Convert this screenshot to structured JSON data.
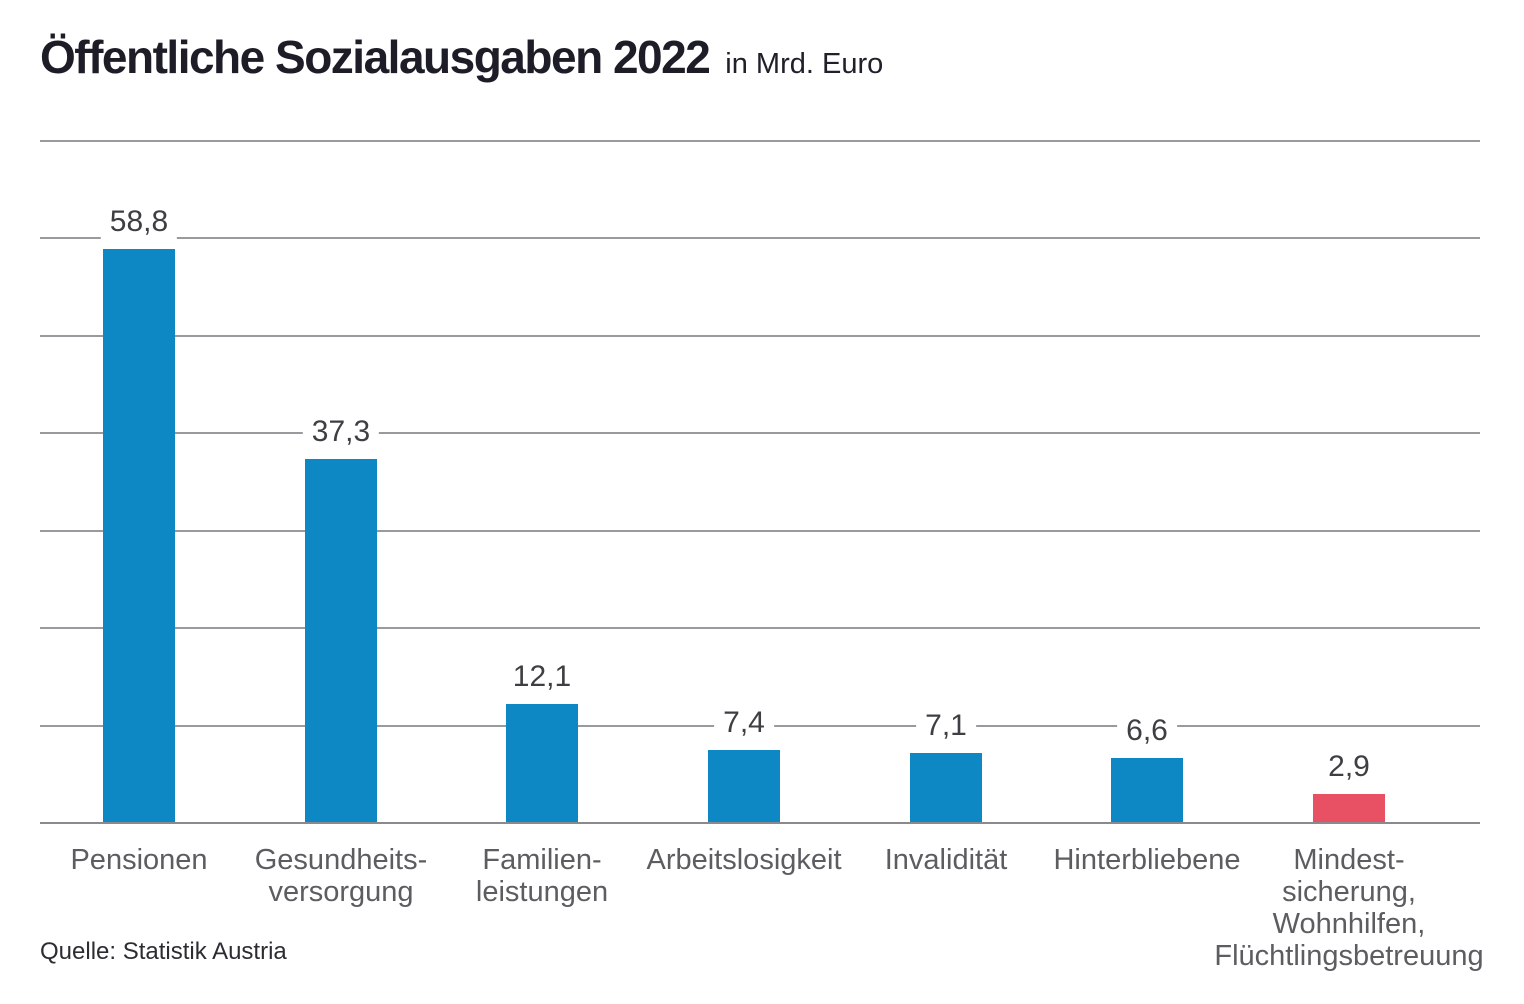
{
  "header": {
    "title": "Öffentliche Sozialausgaben 2022",
    "subtitle": "in Mrd. Euro"
  },
  "footer": {
    "source": "Quelle: Statistik Austria"
  },
  "colors": {
    "bar_blue": "#0e88c4",
    "bar_red": "#e85064",
    "gridline": "#9a9a9e",
    "axis": "#8a8a8e",
    "title_text": "#1d1d27",
    "value_text": "#3f3f43",
    "category_text": "#5d5d61"
  },
  "chart_data": {
    "type": "bar",
    "title": "Öffentliche Sozialausgaben 2022",
    "subtitle": "in Mrd. Euro",
    "unit": "Mrd. Euro",
    "source": "Quelle: Statistik Austria",
    "categories": [
      [
        "Pensionen"
      ],
      [
        "Gesundheits-",
        "versorgung"
      ],
      [
        "Familien-",
        "leistungen"
      ],
      [
        "Arbeitslosigkeit"
      ],
      [
        "Invalidität"
      ],
      [
        "Hinterbliebene"
      ],
      [
        "Mindest-",
        "sicherung,",
        "Wohnhilfen,",
        "Flüchtlingsbetreuung"
      ]
    ],
    "values": [
      58.8,
      37.3,
      12.1,
      7.4,
      7.1,
      6.6,
      2.9
    ],
    "value_labels": [
      "58,8",
      "37,3",
      "12,1",
      "7,4",
      "7,1",
      "6,6",
      "2,9"
    ],
    "bar_colors": [
      "#0e88c4",
      "#0e88c4",
      "#0e88c4",
      "#0e88c4",
      "#0e88c4",
      "#0e88c4",
      "#e85064"
    ],
    "ylim": [
      0,
      70
    ],
    "gridline_step": 10,
    "grid": true,
    "legend": false,
    "xlabel": "",
    "ylabel": ""
  }
}
